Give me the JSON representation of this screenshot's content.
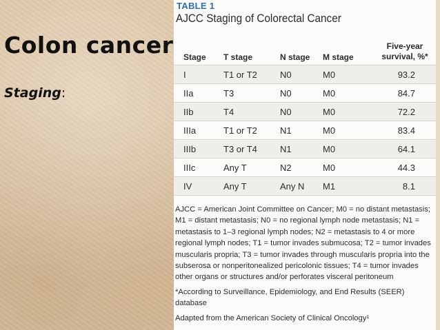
{
  "slide": {
    "title": "Colon cancer",
    "subtitle": "Staging",
    "subtitle_suffix": ":"
  },
  "table": {
    "label": "TABLE 1",
    "title": "AJCC Staging of Colorectal Cancer",
    "headers": {
      "stage": "Stage",
      "t": "T stage",
      "n": "N stage",
      "m": "M stage",
      "survival_line1": "Five-year",
      "survival_line2": "survival, %*"
    },
    "rows": [
      {
        "stage": "I",
        "t": "T1 or T2",
        "n": "N0",
        "m": "M0",
        "survival": "93.2"
      },
      {
        "stage": "IIa",
        "t": "T3",
        "n": "N0",
        "m": "M0",
        "survival": "84.7"
      },
      {
        "stage": "IIb",
        "t": "T4",
        "n": "N0",
        "m": "M0",
        "survival": "72.2"
      },
      {
        "stage": "IIIa",
        "t": "T1 or T2",
        "n": "N1",
        "m": "M0",
        "survival": "83.4"
      },
      {
        "stage": "IIIb",
        "t": "T3 or T4",
        "n": "N1",
        "m": "M0",
        "survival": "64.1"
      },
      {
        "stage": "IIIc",
        "t": "Any T",
        "n": "N2",
        "m": "M0",
        "survival": "44.3"
      },
      {
        "stage": "IV",
        "t": "Any T",
        "n": "Any N",
        "m": "M1",
        "survival": "8.1"
      }
    ],
    "footnotes": {
      "abbreviations": "AJCC = American Joint Committee on Cancer; M0 = no distant metastasis; M1 = distant metastasis; N0 = no regional lymph node metastasis; N1 = metastasis to 1–3 regional lymph nodes; N2 = metastasis to 4 or more regional lymph nodes; T1 = tumor invades submucosa; T2 = tumor invades muscularis propria; T3 = tumor invades through muscularis propria into the subserosa or nonperitonealized pericolonic tissues; T4 = tumor invades other organs or structures and/or perforates visceral peritoneum",
      "seer": "*According to Surveillance, Epidemiology, and End Results (SEER) database",
      "source": "Adapted from the American Society of Clinical Oncology¹"
    }
  }
}
